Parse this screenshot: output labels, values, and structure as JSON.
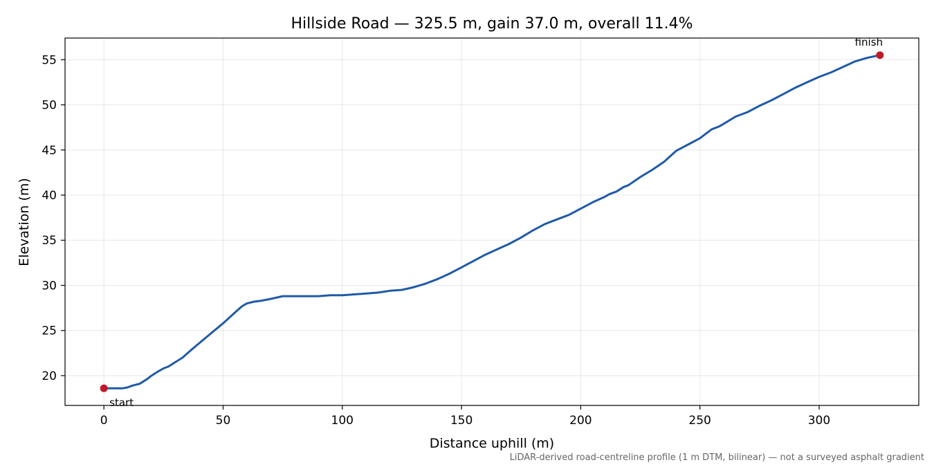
{
  "chart_data": {
    "type": "line",
    "title": "Hillside Road — 325.5 m, gain 37.0 m, overall 11.4%",
    "xlabel": "Distance uphill (m)",
    "ylabel": "Elevation (m)",
    "footnote": "LiDAR-derived road-centreline profile (1 m DTM, bilinear) — not a surveyed asphalt gradient",
    "xlim": [
      -16.3,
      341.8
    ],
    "ylim": [
      16.7,
      57.4
    ],
    "x_ticks": [
      0,
      50,
      100,
      150,
      200,
      250,
      300
    ],
    "y_ticks": [
      20,
      25,
      30,
      35,
      40,
      45,
      50,
      55
    ],
    "grid": true,
    "line_color": "#1f5aa6",
    "marker_color": "#c0192a",
    "series": [
      {
        "x": [
          0,
          5,
          8,
          10,
          12,
          15,
          18,
          20,
          23,
          25,
          27,
          30,
          33,
          36,
          40,
          45,
          50,
          55,
          58,
          60,
          63,
          66,
          70,
          75,
          80,
          85,
          90,
          95,
          100,
          105,
          110,
          115,
          120,
          125,
          130,
          135,
          140,
          145,
          150,
          155,
          160,
          165,
          170,
          175,
          180,
          185,
          190,
          195,
          200,
          205,
          210,
          212,
          215,
          218,
          220,
          225,
          230,
          235,
          240,
          245,
          250,
          255,
          258,
          260,
          265,
          270,
          275,
          280,
          285,
          290,
          295,
          300,
          305,
          310,
          315,
          320,
          325.5
        ],
        "y": [
          18.6,
          18.6,
          18.6,
          18.7,
          18.9,
          19.1,
          19.6,
          20.0,
          20.5,
          20.8,
          21.0,
          21.5,
          22.0,
          22.7,
          23.6,
          24.7,
          25.8,
          27.0,
          27.7,
          28.0,
          28.2,
          28.3,
          28.5,
          28.8,
          28.8,
          28.8,
          28.8,
          28.9,
          28.9,
          29.0,
          29.1,
          29.2,
          29.4,
          29.5,
          29.8,
          30.2,
          30.7,
          31.3,
          32.0,
          32.7,
          33.4,
          34.0,
          34.6,
          35.3,
          36.1,
          36.8,
          37.3,
          37.8,
          38.5,
          39.2,
          39.8,
          40.1,
          40.4,
          40.9,
          41.1,
          42.0,
          42.8,
          43.7,
          44.9,
          45.6,
          46.3,
          47.3,
          47.6,
          47.9,
          48.7,
          49.2,
          49.9,
          50.5,
          51.2,
          51.9,
          52.5,
          53.1,
          53.6,
          54.2,
          54.8,
          55.2,
          55.5
        ]
      }
    ],
    "annotations": [
      {
        "label": "start",
        "x": 0,
        "y": 18.6
      },
      {
        "label": "finish",
        "x": 325.5,
        "y": 55.5
      }
    ]
  }
}
